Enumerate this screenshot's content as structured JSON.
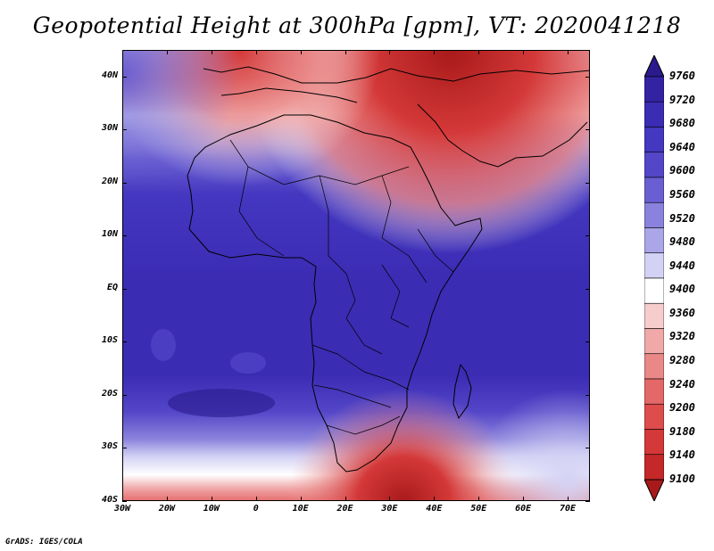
{
  "title": "Geopotential Height at 300hPa [gpm], VT: 2020041218",
  "footer": "GrADS: IGES/COLA",
  "map": {
    "lat_labels": [
      "40N",
      "30N",
      "20N",
      "10N",
      "EQ",
      "10S",
      "20S",
      "30S",
      "40S"
    ],
    "lat_values": [
      40,
      30,
      20,
      10,
      0,
      -10,
      -20,
      -30,
      -40
    ],
    "lon_labels": [
      "30W",
      "20W",
      "10W",
      "0",
      "10E",
      "20E",
      "30E",
      "40E",
      "50E",
      "60E",
      "70E"
    ],
    "lon_values": [
      -30,
      -20,
      -10,
      0,
      10,
      20,
      30,
      40,
      50,
      60,
      70
    ],
    "lat_range": [
      -40,
      45
    ],
    "lon_range": [
      -30,
      75
    ]
  },
  "colorbar": {
    "labels": [
      "9760",
      "9720",
      "9680",
      "9640",
      "9600",
      "9560",
      "9520",
      "9480",
      "9440",
      "9400",
      "9360",
      "9320",
      "9280",
      "9240",
      "9200",
      "9180",
      "9140",
      "9100"
    ],
    "colors": [
      "#2a1a8c",
      "#3323a3",
      "#3b2cb4",
      "#4437c0",
      "#5446c8",
      "#6a5fd2",
      "#8a82dc",
      "#aaa6e8",
      "#d4d2f4",
      "#ffffff",
      "#f6cccc",
      "#f0a8a8",
      "#ea8888",
      "#e46868",
      "#de4c4c",
      "#d43838",
      "#c42828",
      "#a81a1a"
    ]
  }
}
